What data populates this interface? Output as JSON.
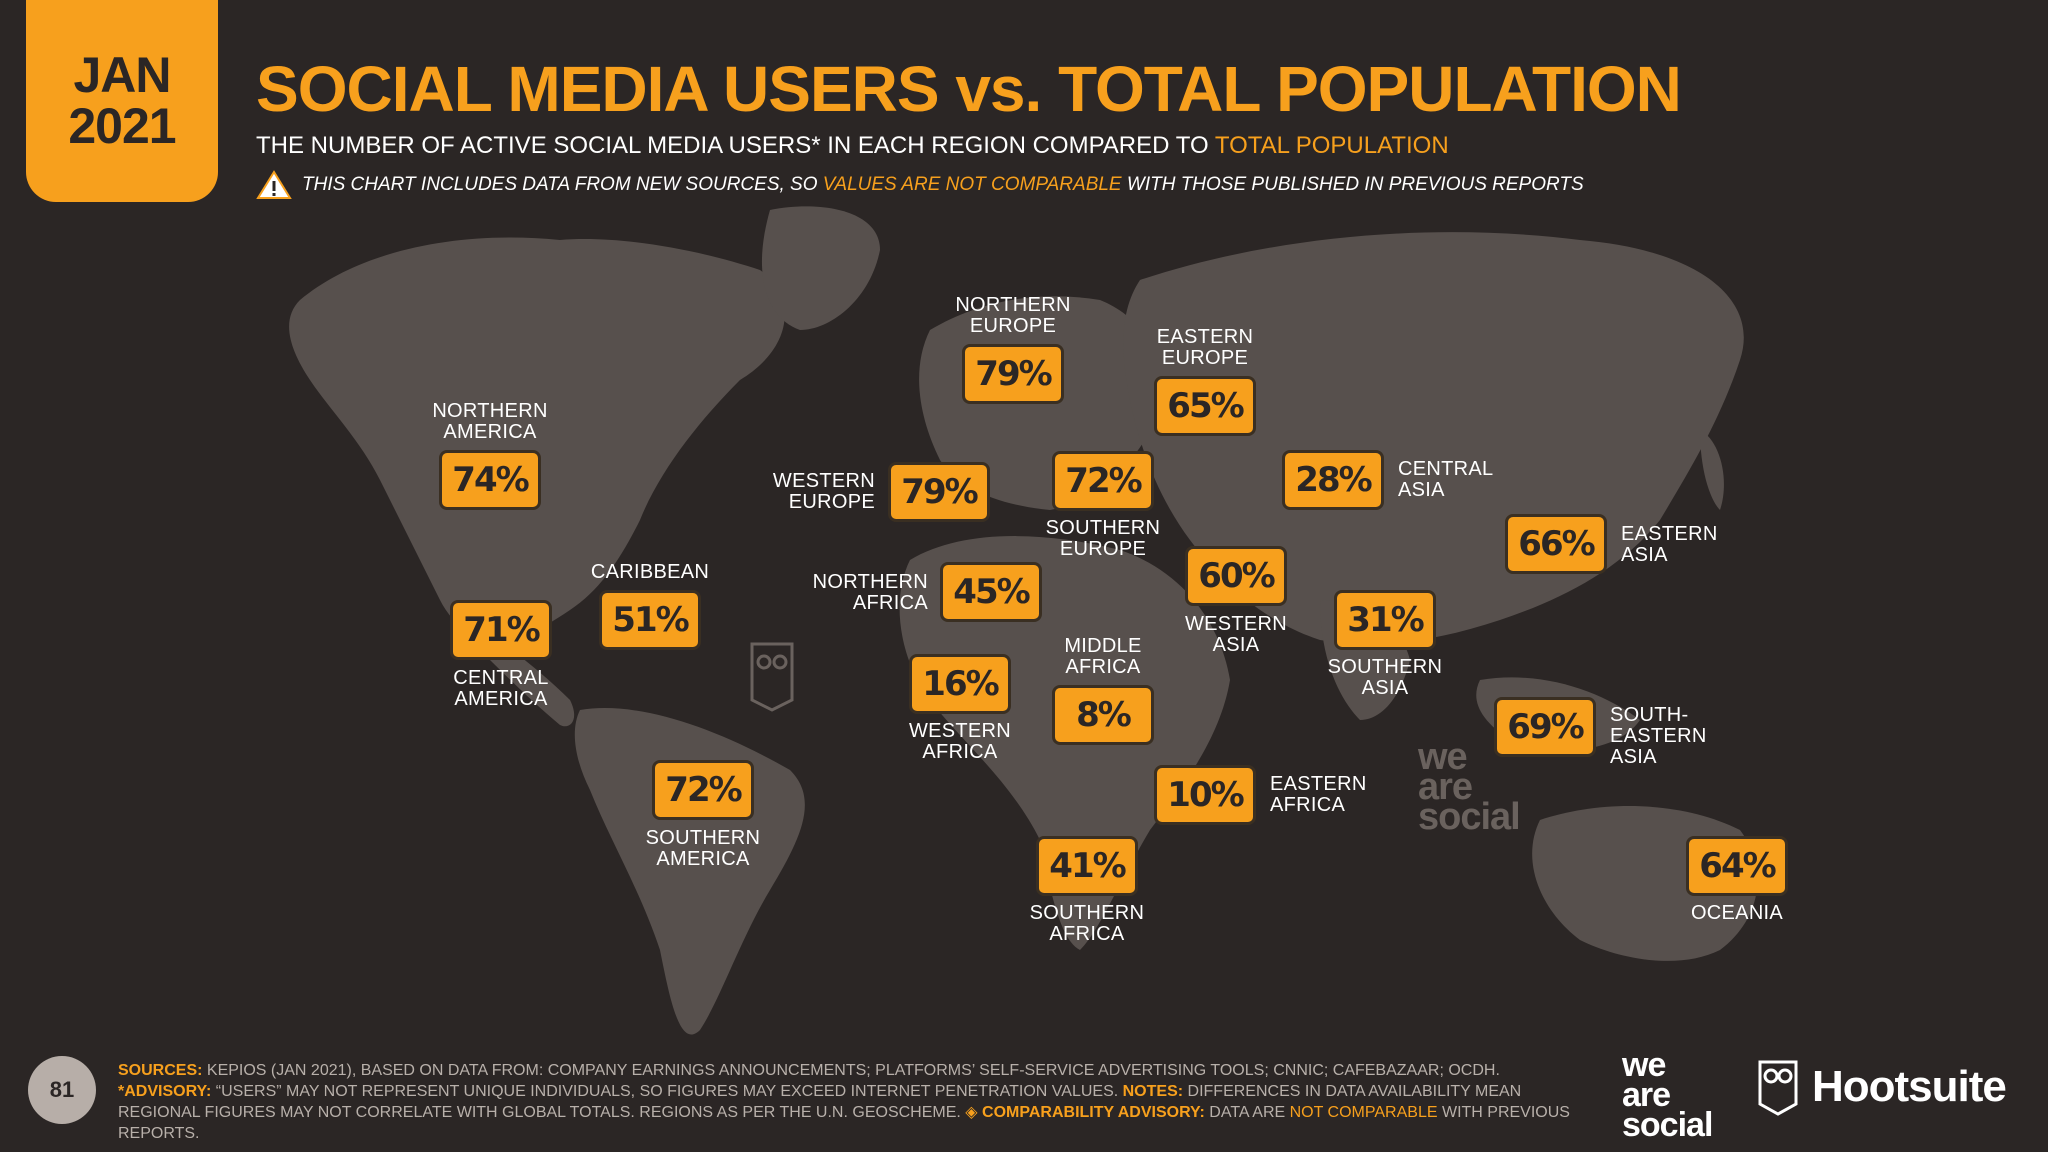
{
  "header": {
    "date_month": "JAN",
    "date_year": "2021",
    "title": "SOCIAL MEDIA USERS vs. TOTAL POPULATION",
    "subtitle_prefix": "THE NUMBER OF ACTIVE SOCIAL MEDIA USERS* IN EACH REGION COMPARED TO ",
    "subtitle_accent": "TOTAL POPULATION",
    "warning_prefix": "THIS CHART INCLUDES DATA FROM NEW SOURCES, SO ",
    "warning_accent": "VALUES ARE NOT COMPARABLE",
    "warning_suffix": " WITH THOSE PUBLISHED IN PREVIOUS REPORTS"
  },
  "regions": [
    {
      "name": "NORTHERN\nAMERICA",
      "value": "74%"
    },
    {
      "name": "CENTRAL\nAMERICA",
      "value": "71%"
    },
    {
      "name": "CARIBBEAN",
      "value": "51%"
    },
    {
      "name": "SOUTHERN\nAMERICA",
      "value": "72%"
    },
    {
      "name": "NORTHERN\nEUROPE",
      "value": "79%"
    },
    {
      "name": "WESTERN\nEUROPE",
      "value": "79%"
    },
    {
      "name": "SOUTHERN\nEUROPE",
      "value": "72%"
    },
    {
      "name": "EASTERN\nEUROPE",
      "value": "65%"
    },
    {
      "name": "NORTHERN\nAFRICA",
      "value": "45%"
    },
    {
      "name": "WESTERN\nAFRICA",
      "value": "16%"
    },
    {
      "name": "MIDDLE\nAFRICA",
      "value": "8%"
    },
    {
      "name": "EASTERN\nAFRICA",
      "value": "10%"
    },
    {
      "name": "SOUTHERN\nAFRICA",
      "value": "41%"
    },
    {
      "name": "WESTERN\nASIA",
      "value": "60%"
    },
    {
      "name": "CENTRAL\nASIA",
      "value": "28%"
    },
    {
      "name": "SOUTHERN\nASIA",
      "value": "31%"
    },
    {
      "name": "EASTERN\nASIA",
      "value": "66%"
    },
    {
      "name": "SOUTH-EASTERN\nASIA",
      "value": "69%"
    },
    {
      "name": "OCEANIA",
      "value": "64%"
    }
  ],
  "footer": {
    "page_number": "81",
    "sources_key": "SOURCES:",
    "sources_text": " KEPIOS (JAN 2021), BASED ON DATA FROM: COMPANY EARNINGS ANNOUNCEMENTS; PLATFORMS’ SELF-SERVICE ADVERTISING TOOLS; CNNIC; CAFEBAZAAR; OCDH.",
    "advisory_key": "*ADVISORY:",
    "advisory_text": " “USERS” MAY NOT REPRESENT UNIQUE INDIVIDUALS, SO FIGURES MAY EXCEED INTERNET PENETRATION VALUES. ",
    "notes_key": "NOTES:",
    "notes_text": " DIFFERENCES IN DATA AVAILABILITY MEAN REGIONAL FIGURES MAY NOT CORRELATE WITH GLOBAL TOTALS. REGIONS AS PER THE U.N. GEOSCHEME. ",
    "comparability_key": "◈ COMPARABILITY ADVISORY:",
    "comparability_text": " DATA ARE ",
    "comparability_accent": "NOT COMPARABLE",
    "comparability_suffix": " WITH PREVIOUS REPORTS."
  },
  "logos": {
    "we_are_social": "we\nare\nsocial",
    "hootsuite": "Hootsuite",
    "watermark": "we\nare\nsocial"
  },
  "colors": {
    "background": "#2b2625",
    "land": "#5a5350",
    "accent": "#f7a01d",
    "text": "#ffffff"
  }
}
